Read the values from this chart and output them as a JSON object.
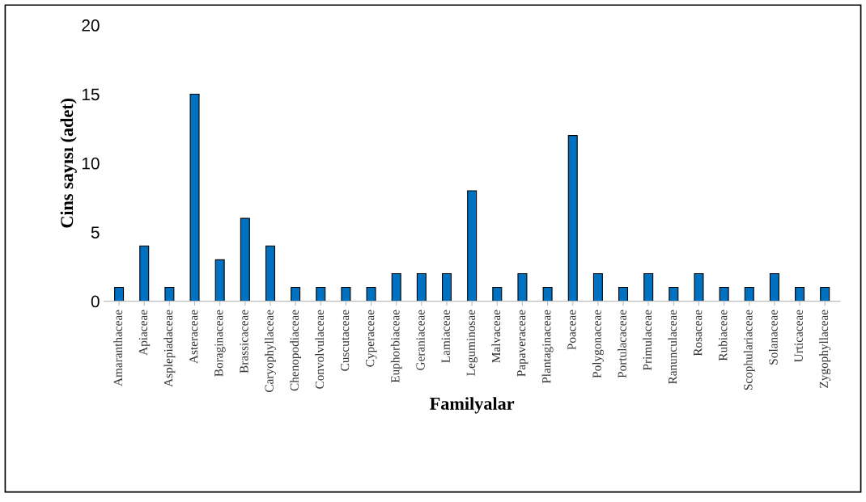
{
  "chart_data": {
    "type": "bar",
    "xlabel": "Familyalar",
    "ylabel": "Cins sayısı (adet)",
    "categories": [
      "Amaranthaceae",
      "Apiaceae",
      "Asplepiadaceae",
      "Asteraceae",
      "Boraginaceae",
      "Brassicaceae",
      "Caryophyllaceae",
      "Chenopodiaceae",
      "Convolvulaceae",
      "Cuscutaceae",
      "Cyperaceae",
      "Euphorbiaceae",
      "Geraniaceae",
      "Lamiaceae",
      "Leguminosae",
      "Malvaceae",
      "Papaveraceae",
      "Plantaginaceae",
      "Poaceae",
      "Polygonaceae",
      "Portulacaceae",
      "Primulaceae",
      "Ranunculaceae",
      "Rosaceae",
      "Rubiaceae",
      "Scophulariaceae",
      "Solanaceae",
      "Urticaceae",
      "Zygophyllaceae"
    ],
    "values": [
      1,
      4,
      1,
      15,
      3,
      6,
      4,
      1,
      1,
      1,
      1,
      2,
      2,
      2,
      8,
      1,
      2,
      1,
      12,
      2,
      1,
      2,
      1,
      2,
      1,
      1,
      2,
      1,
      1
    ],
    "color": "#0070c0",
    "ylim": [
      0,
      20
    ],
    "yticks": [
      0,
      5,
      10,
      15,
      20
    ],
    "grid": false
  }
}
